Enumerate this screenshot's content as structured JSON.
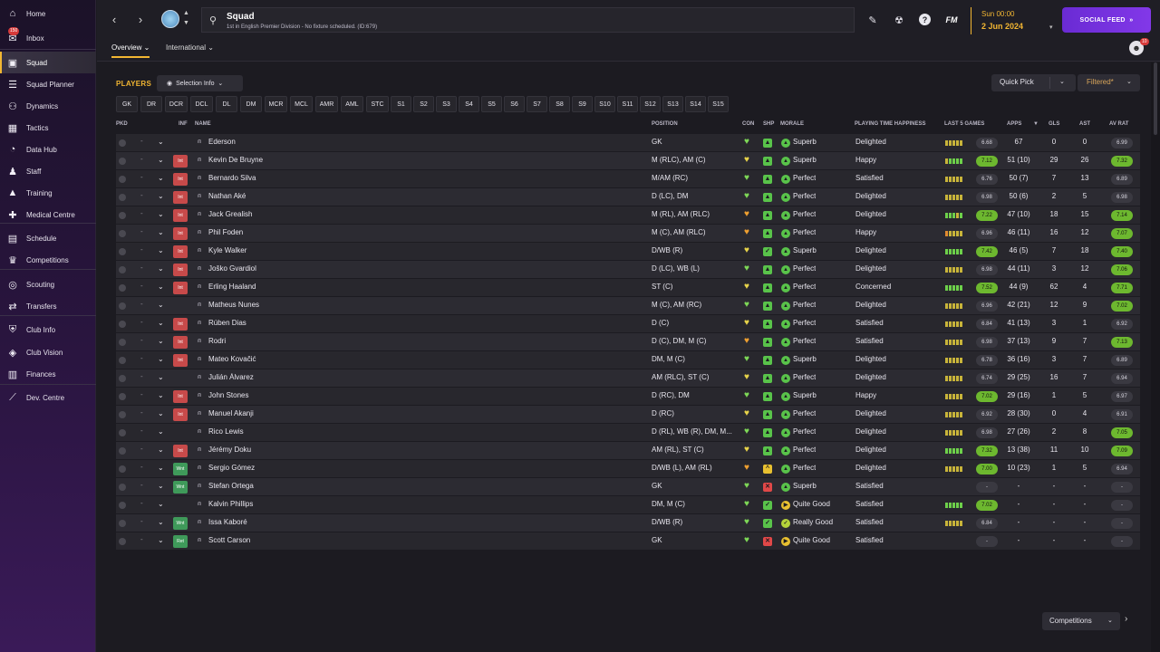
{
  "sidebar": {
    "items": [
      {
        "label": "Home",
        "icon": "home-icon"
      },
      {
        "label": "Inbox",
        "icon": "inbox-icon",
        "badge": "150"
      },
      {
        "label": "Squad",
        "icon": "shirt-icon",
        "active": true
      },
      {
        "label": "Squad Planner",
        "icon": "planner-icon"
      },
      {
        "label": "Dynamics",
        "icon": "dynamics-icon"
      },
      {
        "label": "Tactics",
        "icon": "tactics-icon"
      },
      {
        "label": "Data Hub",
        "icon": "data-hub-icon"
      },
      {
        "label": "Staff",
        "icon": "staff-icon"
      },
      {
        "label": "Training",
        "icon": "training-icon"
      },
      {
        "label": "Medical Centre",
        "icon": "medical-icon"
      },
      {
        "label": "Schedule",
        "icon": "calendar-icon"
      },
      {
        "label": "Competitions",
        "icon": "trophy-icon"
      },
      {
        "label": "Scouting",
        "icon": "scouting-icon"
      },
      {
        "label": "Transfers",
        "icon": "transfers-icon"
      },
      {
        "label": "Club Info",
        "icon": "shield-icon"
      },
      {
        "label": "Club Vision",
        "icon": "vision-icon"
      },
      {
        "label": "Finances",
        "icon": "finances-icon"
      },
      {
        "label": "Dev. Centre",
        "icon": "dev-centre-icon"
      }
    ]
  },
  "header": {
    "title": "Squad",
    "subtitle": "1st in English Premier Division - No fixture scheduled. (ID:679)",
    "fm": "FM",
    "date_day": "Sun 00:00",
    "date": "2 Jun 2024",
    "social_feed": "SOCIAL FEED",
    "user_badge": "10"
  },
  "subtabs": {
    "overview": "Overview",
    "international": "International"
  },
  "toolbar": {
    "players": "PLAYERS",
    "selection_info": "Selection Info",
    "quick_pick": "Quick Pick",
    "filtered": "Filtered*"
  },
  "positions": [
    "GK",
    "DR",
    "DCR",
    "DCL",
    "DL",
    "DM",
    "MCR",
    "MCL",
    "AMR",
    "AML",
    "STC",
    "S1",
    "S2",
    "S3",
    "S4",
    "S5",
    "S6",
    "S7",
    "S8",
    "S9",
    "S10",
    "S11",
    "S12",
    "S13",
    "S14",
    "S15"
  ],
  "columns": {
    "pkd": "PKD",
    "inf": "INF",
    "name": "NAME",
    "position": "POSITION",
    "con": "CON",
    "shp": "SHP",
    "morale": "MORALE",
    "pth": "PLAYING TIME HAPPINESS",
    "last5": "LAST 5 GAMES",
    "apps": "APPS",
    "gls": "GLS",
    "ast": "AST",
    "avrat": "AV RAT",
    "sort_arrow": "▼"
  },
  "players": [
    {
      "dot": "-",
      "inf": "",
      "name": "Ederson",
      "position": "GK",
      "con": "green",
      "shp": "up",
      "morale": "Superb",
      "pth": "Delighted",
      "bars": [
        "y",
        "y",
        "y",
        "y",
        "y"
      ],
      "l5": "6.68",
      "l5hi": false,
      "apps": "67",
      "gls": "0",
      "ast": "0",
      "av": "6.99",
      "avhi": false
    },
    {
      "dot": "-",
      "inf": "Int",
      "name": "Kevin De Bruyne",
      "position": "M (RLC), AM (C)",
      "con": "yellow",
      "shp": "up",
      "morale": "Superb",
      "pth": "Happy",
      "bars": [
        "y",
        "g",
        "g",
        "g",
        "g"
      ],
      "l5": "7.12",
      "l5hi": true,
      "apps": "51 (10)",
      "gls": "29",
      "ast": "26",
      "av": "7.32",
      "avhi": true
    },
    {
      "dot": "-",
      "inf": "Int",
      "name": "Bernardo Silva",
      "position": "M/AM (RC)",
      "con": "green",
      "shp": "up",
      "morale": "Perfect",
      "pth": "Satisfied",
      "bars": [
        "y",
        "y",
        "y",
        "y",
        "y"
      ],
      "l5": "6.76",
      "l5hi": false,
      "apps": "50 (7)",
      "gls": "7",
      "ast": "13",
      "av": "6.89",
      "avhi": false
    },
    {
      "dot": "-",
      "inf": "Int",
      "name": "Nathan Aké",
      "position": "D (LC), DM",
      "con": "green",
      "shp": "up",
      "morale": "Perfect",
      "pth": "Delighted",
      "bars": [
        "y",
        "y",
        "y",
        "y",
        "y"
      ],
      "l5": "6.98",
      "l5hi": false,
      "apps": "50 (6)",
      "gls": "2",
      "ast": "5",
      "av": "6.98",
      "avhi": false
    },
    {
      "dot": "-",
      "inf": "Int",
      "name": "Jack Grealish",
      "position": "M (RL), AM (RLC)",
      "con": "orange",
      "shp": "up",
      "morale": "Perfect",
      "pth": "Delighted",
      "bars": [
        "g",
        "g",
        "g",
        "y",
        "g"
      ],
      "l5": "7.22",
      "l5hi": true,
      "apps": "47 (10)",
      "gls": "18",
      "ast": "15",
      "av": "7.14",
      "avhi": true
    },
    {
      "dot": "-",
      "inf": "Int",
      "name": "Phil Foden",
      "position": "M (C), AM (RLC)",
      "con": "orange",
      "shp": "up",
      "morale": "Perfect",
      "pth": "Happy",
      "bars": [
        "o",
        "y",
        "y",
        "y",
        "y"
      ],
      "l5": "6.96",
      "l5hi": false,
      "apps": "46 (11)",
      "gls": "16",
      "ast": "12",
      "av": "7.07",
      "avhi": true
    },
    {
      "dot": "-",
      "inf": "Int",
      "name": "Kyle Walker",
      "position": "D/WB (R)",
      "con": "yellow",
      "shp": "ok",
      "morale": "Superb",
      "pth": "Delighted",
      "bars": [
        "g",
        "g",
        "g",
        "g",
        "g"
      ],
      "l5": "7.42",
      "l5hi": true,
      "apps": "46 (5)",
      "gls": "7",
      "ast": "18",
      "av": "7.40",
      "avhi": true
    },
    {
      "dot": "-",
      "inf": "Int",
      "name": "Joško Gvardiol",
      "position": "D (LC), WB (L)",
      "con": "green",
      "shp": "up",
      "morale": "Perfect",
      "pth": "Delighted",
      "bars": [
        "y",
        "y",
        "y",
        "y",
        "y"
      ],
      "l5": "6.98",
      "l5hi": false,
      "apps": "44 (11)",
      "gls": "3",
      "ast": "12",
      "av": "7.06",
      "avhi": true
    },
    {
      "dot": "-",
      "inf": "Int",
      "name": "Erling Haaland",
      "position": "ST (C)",
      "con": "yellow",
      "shp": "up",
      "morale": "Perfect",
      "pth": "Concerned",
      "bars": [
        "g",
        "g",
        "g",
        "g",
        "g"
      ],
      "l5": "7.52",
      "l5hi": true,
      "apps": "44 (9)",
      "gls": "62",
      "ast": "4",
      "av": "7.71",
      "avhi": true
    },
    {
      "dot": "-",
      "inf": "",
      "name": "Matheus Nunes",
      "position": "M (C), AM (RC)",
      "con": "green",
      "shp": "up",
      "morale": "Perfect",
      "pth": "Delighted",
      "bars": [
        "y",
        "y",
        "y",
        "y",
        "y"
      ],
      "l5": "6.96",
      "l5hi": false,
      "apps": "42 (21)",
      "gls": "12",
      "ast": "9",
      "av": "7.02",
      "avhi": true
    },
    {
      "dot": "-",
      "inf": "Int",
      "name": "Rúben Dias",
      "position": "D (C)",
      "con": "yellow",
      "shp": "up",
      "morale": "Perfect",
      "pth": "Satisfied",
      "bars": [
        "y",
        "y",
        "y",
        "y",
        "y"
      ],
      "l5": "6.84",
      "l5hi": false,
      "apps": "41 (13)",
      "gls": "3",
      "ast": "1",
      "av": "6.92",
      "avhi": false
    },
    {
      "dot": "-",
      "inf": "Int",
      "name": "Rodri",
      "position": "D (C), DM, M (C)",
      "con": "orange",
      "shp": "up",
      "morale": "Perfect",
      "pth": "Satisfied",
      "bars": [
        "y",
        "y",
        "y",
        "y",
        "y"
      ],
      "l5": "6.98",
      "l5hi": false,
      "apps": "37 (13)",
      "gls": "9",
      "ast": "7",
      "av": "7.13",
      "avhi": true
    },
    {
      "dot": "-",
      "inf": "Int",
      "name": "Mateo Kovačić",
      "position": "DM, M (C)",
      "con": "green",
      "shp": "up",
      "morale": "Superb",
      "pth": "Delighted",
      "bars": [
        "y",
        "y",
        "y",
        "y",
        "y"
      ],
      "l5": "6.78",
      "l5hi": false,
      "apps": "36 (16)",
      "gls": "3",
      "ast": "7",
      "av": "6.89",
      "avhi": false
    },
    {
      "dot": "-",
      "inf": "",
      "name": "Julián Álvarez",
      "position": "AM (RLC), ST (C)",
      "con": "yellow",
      "shp": "up",
      "morale": "Perfect",
      "pth": "Delighted",
      "bars": [
        "y",
        "y",
        "y",
        "y",
        "y"
      ],
      "l5": "6.74",
      "l5hi": false,
      "apps": "29 (25)",
      "gls": "16",
      "ast": "7",
      "av": "6.94",
      "avhi": false
    },
    {
      "dot": "-",
      "inf": "Int",
      "name": "John Stones",
      "position": "D (RC), DM",
      "con": "green",
      "shp": "up",
      "morale": "Superb",
      "pth": "Happy",
      "bars": [
        "y",
        "y",
        "y",
        "y",
        "y"
      ],
      "l5": "7.02",
      "l5hi": true,
      "apps": "29 (16)",
      "gls": "1",
      "ast": "5",
      "av": "6.97",
      "avhi": false
    },
    {
      "dot": "-",
      "inf": "Int",
      "name": "Manuel Akanji",
      "position": "D (RC)",
      "con": "yellow",
      "shp": "up",
      "morale": "Perfect",
      "pth": "Delighted",
      "bars": [
        "y",
        "y",
        "y",
        "y",
        "y"
      ],
      "l5": "6.92",
      "l5hi": false,
      "apps": "28 (30)",
      "gls": "0",
      "ast": "4",
      "av": "6.91",
      "avhi": false
    },
    {
      "dot": "-",
      "inf": "",
      "name": "Rico Lewis",
      "position": "D (RL), WB (R), DM, M...",
      "con": "green",
      "shp": "up",
      "morale": "Perfect",
      "pth": "Delighted",
      "bars": [
        "y",
        "y",
        "y",
        "y",
        "y"
      ],
      "l5": "6.98",
      "l5hi": false,
      "apps": "27 (26)",
      "gls": "2",
      "ast": "8",
      "av": "7.05",
      "avhi": true
    },
    {
      "dot": "-",
      "inf": "Int",
      "name": "Jérémy Doku",
      "position": "AM (RL), ST (C)",
      "con": "yellow",
      "shp": "up",
      "morale": "Perfect",
      "pth": "Delighted",
      "bars": [
        "g",
        "g",
        "g",
        "g",
        "g"
      ],
      "l5": "7.32",
      "l5hi": true,
      "apps": "13 (38)",
      "gls": "11",
      "ast": "10",
      "av": "7.09",
      "avhi": true
    },
    {
      "dot": "-",
      "inf": "Wnt",
      "name": "Sergio Gómez",
      "position": "D/WB (L), AM (RL)",
      "con": "orange",
      "shp": "mid",
      "morale": "Perfect",
      "pth": "Delighted",
      "bars": [
        "y",
        "y",
        "y",
        "y",
        "y"
      ],
      "l5": "7.00",
      "l5hi": true,
      "apps": "10 (23)",
      "gls": "1",
      "ast": "5",
      "av": "6.94",
      "avhi": false
    },
    {
      "dot": "-",
      "inf": "Wnt",
      "name": "Stefan Ortega",
      "position": "GK",
      "con": "green",
      "shp": "down",
      "morale": "Superb",
      "pth": "Satisfied",
      "bars": [],
      "l5": "-",
      "l5hi": false,
      "apps": "-",
      "gls": "-",
      "ast": "-",
      "av": "-",
      "avhi": false
    },
    {
      "dot": "-",
      "inf": "",
      "name": "Kalvin Phillips",
      "position": "DM, M (C)",
      "con": "green",
      "shp": "ok",
      "morale": "Quite Good",
      "pth": "Satisfied",
      "bars": [
        "g",
        "g",
        "g",
        "g",
        "g"
      ],
      "l5": "7.02",
      "l5hi": true,
      "apps": "-",
      "gls": "-",
      "ast": "-",
      "av": "-",
      "avhi": false
    },
    {
      "dot": "-",
      "inf": "Wnt",
      "name": "Issa Kaboré",
      "position": "D/WB (R)",
      "con": "green",
      "shp": "ok",
      "morale": "Really Good",
      "pth": "Satisfied",
      "bars": [
        "y",
        "y",
        "y",
        "y",
        "y"
      ],
      "l5": "6.84",
      "l5hi": false,
      "apps": "-",
      "gls": "-",
      "ast": "-",
      "av": "-",
      "avhi": false
    },
    {
      "dot": "-",
      "inf": "Ret",
      "name": "Scott Carson",
      "position": "GK",
      "con": "green",
      "shp": "down",
      "morale": "Quite Good",
      "pth": "Satisfied",
      "bars": [],
      "l5": "-",
      "l5hi": false,
      "apps": "-",
      "gls": "-",
      "ast": "-",
      "av": "-",
      "avhi": false
    }
  ],
  "footer": {
    "competitions": "Competitions"
  },
  "colors": {
    "accent": "#f2b632",
    "green": "#6db82f",
    "social": "#7a35e0",
    "int_badge": "#c74a4a",
    "wnt_badge": "#3f9a5a"
  }
}
